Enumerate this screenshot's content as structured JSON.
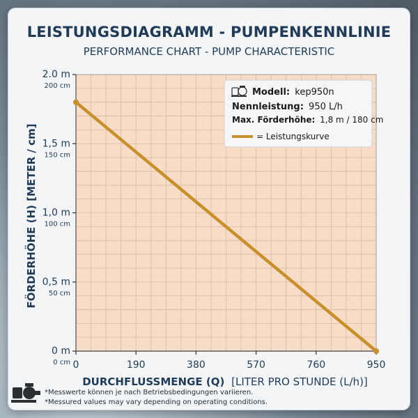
{
  "title": "LEISTUNGSDIAGRAMM - PUMPENKENNLINIE",
  "subtitle": "PERFORMANCE CHART - PUMP CHARACTERISTIC",
  "legend": {
    "model_label": "Modell:",
    "model_value": "kep950n",
    "power_label": "Nennleistung:",
    "power_value": "950 L/h",
    "head_label": "Max. Förderhöhe:",
    "head_value": "1,8 m / 180 cm",
    "curve_label": "= Leistungskurve"
  },
  "footnotes": [
    "*Messwerte können je nach Betriebsbedingungen variieren.",
    "*Messured values may vary depending on operating conditions."
  ],
  "colors": {
    "curve": "#c8902a",
    "plot_bg": "#f7dcc8",
    "grid": "#d9b9a3",
    "text": "#1f3b57"
  },
  "chart_data": {
    "type": "line",
    "xlabel_bold": "DURCHFLUSSMENGE (Q)",
    "xlabel_rest": "[LITER PRO STUNDE (L/h)]",
    "ylabel": "FÖRDERHÖHE (H) [METER / cm]",
    "xlim": [
      0,
      950
    ],
    "ylim": [
      0,
      2.0
    ],
    "x_ticks": [
      {
        "value": 0,
        "label": "0"
      },
      {
        "value": 190,
        "label": "190"
      },
      {
        "value": 380,
        "label": "380"
      },
      {
        "value": 570,
        "label": "570"
      },
      {
        "value": 760,
        "label": "760"
      },
      {
        "value": 950,
        "label": "950"
      }
    ],
    "y_ticks": [
      {
        "value": 0,
        "label": "0 m",
        "sublabel": "0 cm"
      },
      {
        "value": 0.5,
        "label": "0,5 m",
        "sublabel": "50 cm"
      },
      {
        "value": 1.0,
        "label": "1,0 m",
        "sublabel": "100 cm"
      },
      {
        "value": 1.5,
        "label": "1,5 m",
        "sublabel": "150 cm"
      },
      {
        "value": 2.0,
        "label": "2.0 m",
        "sublabel": "200 cm"
      }
    ],
    "grid": true,
    "legend_position": "top-right",
    "series": [
      {
        "name": "Leistungskurve",
        "x": [
          0,
          950
        ],
        "y": [
          1.8,
          0
        ]
      }
    ]
  }
}
